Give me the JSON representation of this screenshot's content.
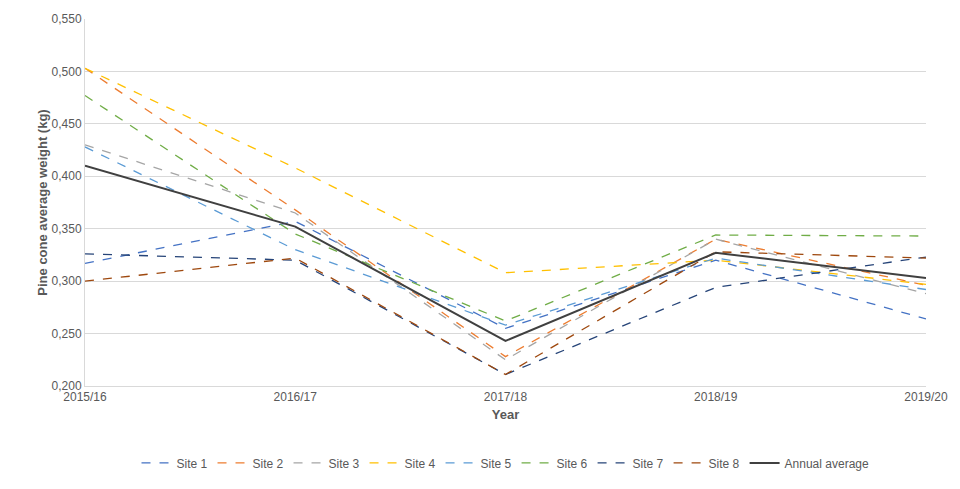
{
  "chart_data": {
    "type": "line",
    "x_label": "Year",
    "y_label": "Pine cone average weight (kg)",
    "categories": [
      "2015/16",
      "2016/17",
      "2017/18",
      "2018/19",
      "2019/20"
    ],
    "series": [
      {
        "name": "Site 1",
        "color": "#4472c4",
        "line_style": "dash",
        "values": [
          0.317,
          0.357,
          0.255,
          0.32,
          0.264
        ]
      },
      {
        "name": "Site 2",
        "color": "#ed7d31",
        "line_style": "dash",
        "values": [
          0.503,
          0.368,
          0.228,
          0.34,
          0.296
        ]
      },
      {
        "name": "Site 3",
        "color": "#a5a5a5",
        "line_style": "dash",
        "values": [
          0.43,
          0.365,
          0.225,
          0.34,
          0.288
        ]
      },
      {
        "name": "Site 4",
        "color": "#ffc000",
        "line_style": "dash",
        "values": [
          0.503,
          0.408,
          0.308,
          0.32,
          0.297
        ]
      },
      {
        "name": "Site 5",
        "color": "#5b9bd5",
        "line_style": "dash",
        "values": [
          0.428,
          0.33,
          0.258,
          0.322,
          0.292
        ]
      },
      {
        "name": "Site 6",
        "color": "#70ad47",
        "line_style": "dash",
        "values": [
          0.477,
          0.345,
          0.262,
          0.344,
          0.343
        ]
      },
      {
        "name": "Site 7",
        "color": "#264478",
        "line_style": "dash",
        "values": [
          0.326,
          0.32,
          0.211,
          0.294,
          0.323
        ]
      },
      {
        "name": "Site 8",
        "color": "#9e480e",
        "line_style": "dash",
        "values": [
          0.3,
          0.322,
          0.211,
          0.328,
          0.322
        ]
      },
      {
        "name": "Annual average",
        "color": "#404040",
        "line_style": "solid",
        "values": [
          0.41,
          0.352,
          0.243,
          0.327,
          0.303
        ]
      }
    ],
    "ylim": [
      0.2,
      0.55
    ],
    "yticks": [
      {
        "value": 0.2,
        "label": "0,200"
      },
      {
        "value": 0.25,
        "label": "0,250"
      },
      {
        "value": 0.3,
        "label": "0,300"
      },
      {
        "value": 0.35,
        "label": "0,350"
      },
      {
        "value": 0.4,
        "label": "0,400"
      },
      {
        "value": 0.45,
        "label": "0,450"
      },
      {
        "value": 0.5,
        "label": "0,500"
      },
      {
        "value": 0.55,
        "label": "0,550"
      }
    ],
    "grid": true,
    "legend": "bottom"
  }
}
